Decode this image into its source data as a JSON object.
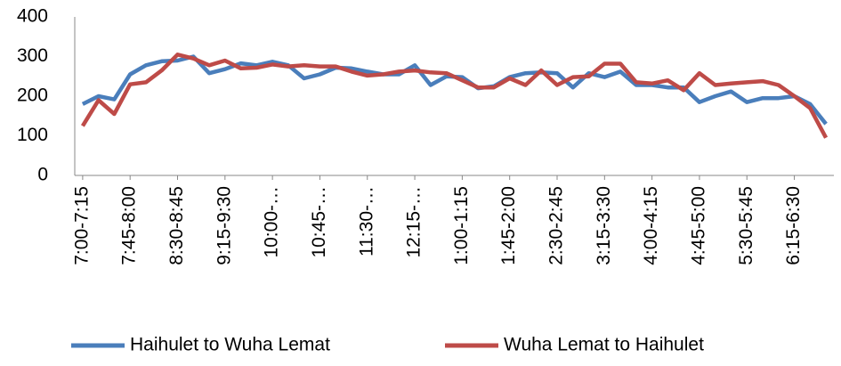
{
  "chart_data": {
    "type": "line",
    "categories": [
      "7:00-7:15",
      null,
      null,
      "7:45-8:00",
      null,
      null,
      "8:30-8:45",
      null,
      null,
      "9:15-9:30",
      null,
      null,
      "10:00-…",
      null,
      null,
      "10:45-…",
      null,
      null,
      "11:30-…",
      null,
      null,
      "12:15-…",
      null,
      null,
      "1:00-1:15",
      null,
      null,
      "1:45-2:00",
      null,
      null,
      "2:30-2:45",
      null,
      null,
      "3:15-3:30",
      null,
      null,
      "4:00-4:15",
      null,
      null,
      "4:45-5:00",
      null,
      null,
      "5:30-5:45",
      null,
      null,
      "6:15-6:30",
      null,
      null
    ],
    "series": [
      {
        "name": "Haihulet to Wuha Lemat",
        "color": "#4a7ebb",
        "values": [
          180,
          200,
          192,
          255,
          278,
          288,
          290,
          300,
          258,
          268,
          283,
          278,
          287,
          278,
          245,
          255,
          272,
          270,
          262,
          255,
          255,
          278,
          228,
          250,
          248,
          220,
          225,
          248,
          258,
          260,
          258,
          222,
          258,
          248,
          262,
          228,
          228,
          222,
          222,
          185,
          200,
          212,
          185,
          195,
          195,
          200,
          180,
          130
        ]
      },
      {
        "name": "Wuha Lemat to Haihulet",
        "color": "#be4b48",
        "values": [
          125,
          190,
          155,
          230,
          235,
          265,
          305,
          295,
          278,
          290,
          270,
          272,
          280,
          275,
          278,
          275,
          275,
          262,
          252,
          255,
          262,
          265,
          260,
          258,
          240,
          222,
          222,
          245,
          228,
          265,
          228,
          248,
          250,
          282,
          282,
          235,
          232,
          240,
          215,
          258,
          228,
          232,
          235,
          238,
          228,
          200,
          170,
          95
        ]
      }
    ],
    "ylim": [
      0,
      400
    ],
    "yticks": [
      0,
      100,
      200,
      300,
      400
    ],
    "grid": false,
    "legend": "bottom"
  }
}
